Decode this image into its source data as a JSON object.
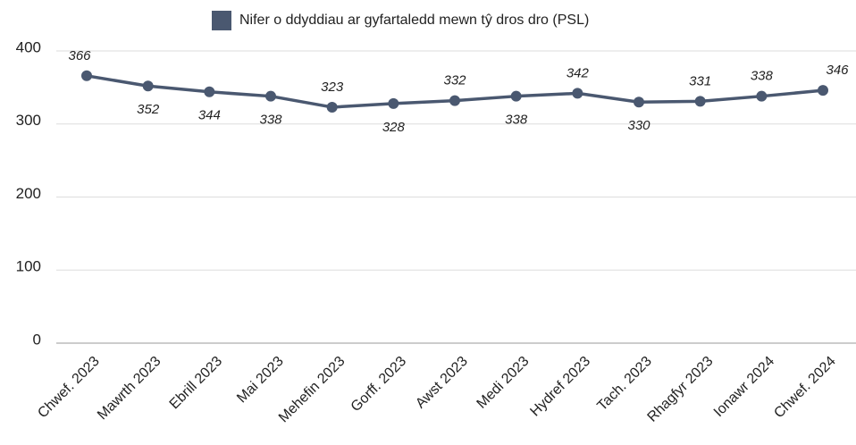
{
  "chart_data": {
    "type": "line",
    "categories": [
      "Chwef. 2023",
      "Mawrth 2023",
      "Ebrill 2023",
      "Mai 2023",
      "Mehefin 2023",
      "Gorff. 2023",
      "Awst 2023",
      "Medi 2023",
      "Hydref 2023",
      "Tach. 2023",
      "Rhagfyr 2023",
      "Ionawr 2024",
      "Chwef. 2024"
    ],
    "series": [
      {
        "name": "Nifer o ddyddiau ar gyfartaledd mewn tŷ dros dro (PSL)",
        "color": "#4a5870",
        "values": [
          366,
          352,
          344,
          338,
          323,
          328,
          332,
          338,
          342,
          330,
          331,
          338,
          346
        ]
      }
    ],
    "ylim": [
      0,
      400
    ],
    "yticks": [
      0,
      100,
      200,
      300,
      400
    ],
    "grid": true,
    "legend": "top"
  }
}
